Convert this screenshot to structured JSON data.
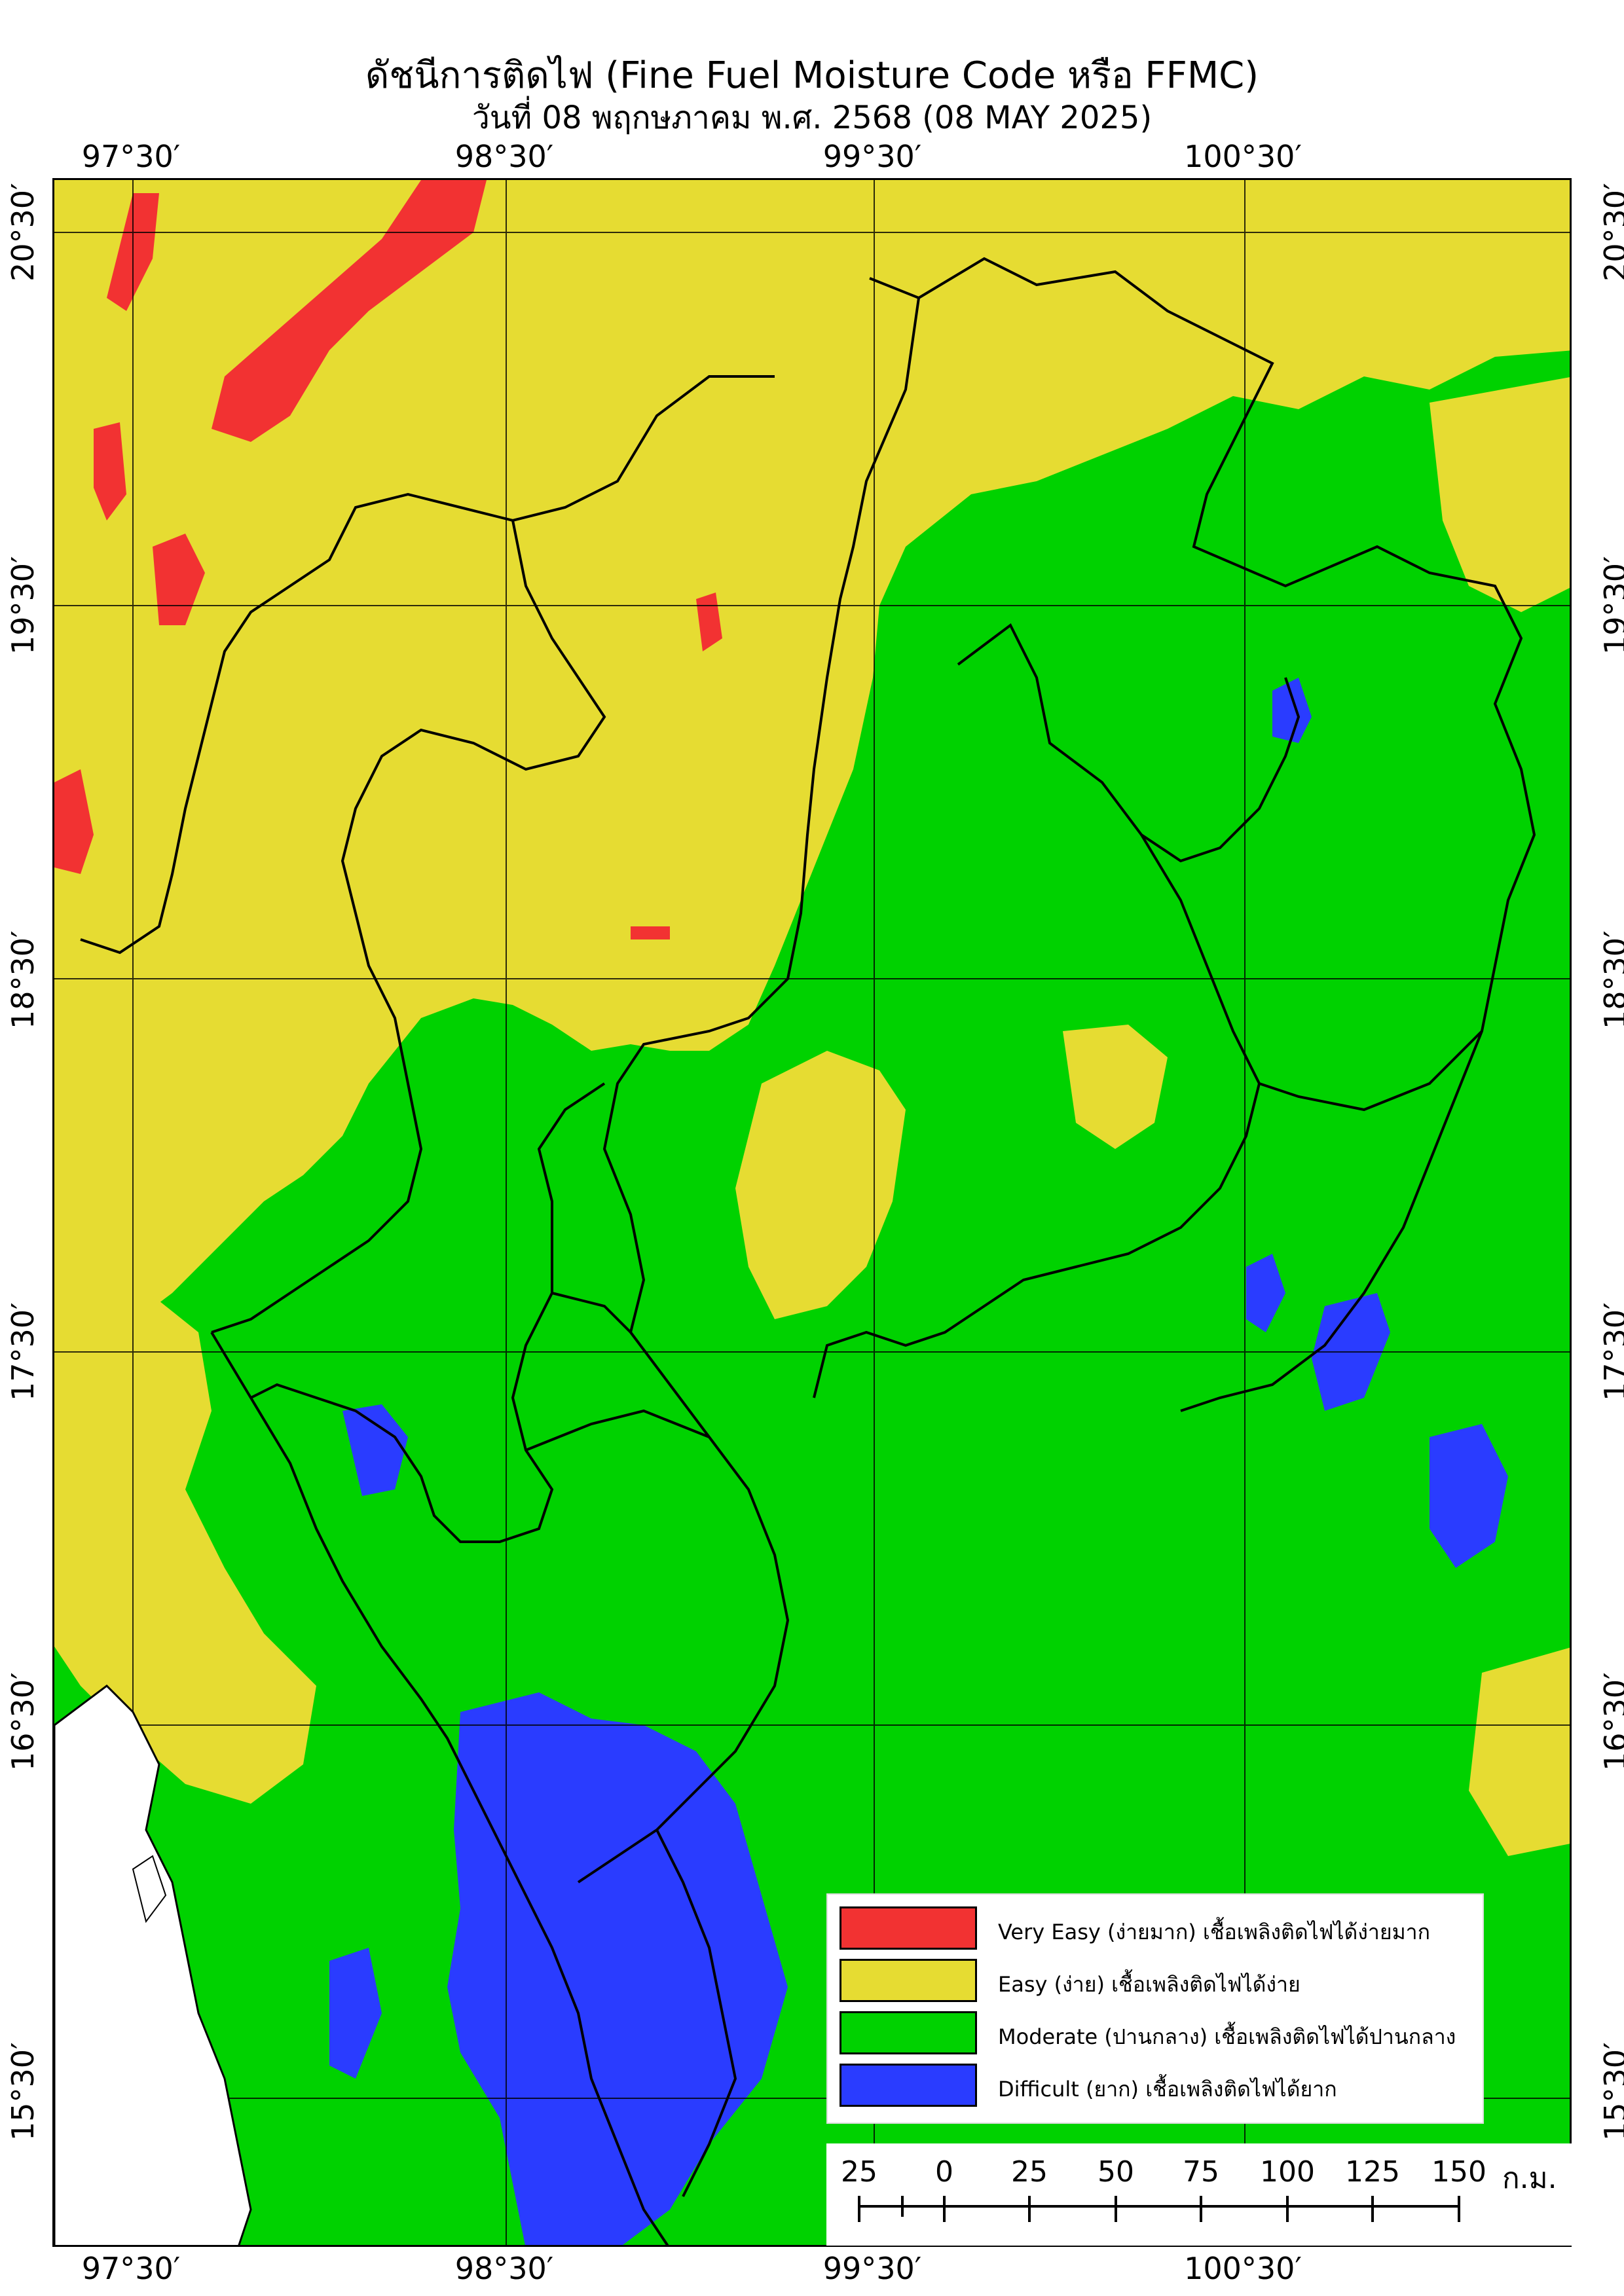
{
  "title": "ดัชนีการติดไฟ (Fine Fuel Moisture Code หรือ FFMC)",
  "subtitle": "วันที่ 08 พฤกษภาคม พ.ศ. 2568 (08 MAY 2025)",
  "longitude_ticks": [
    "97°30′",
    "98°30′",
    "99°30′",
    "100°30′"
  ],
  "latitude_ticks": [
    "20°30′",
    "19°30′",
    "18°30′",
    "17°30′",
    "16°30′",
    "15°30′"
  ],
  "legend": [
    {
      "label": "Very Easy (ง่ายมาก) เชื้อเพลิงติดไฟได้ง่ายมาก",
      "color": "#f23232"
    },
    {
      "label": "Easy (ง่าย) เชื้อเพลิงติดไฟได้ง่าย",
      "color": "#e6dc32"
    },
    {
      "label": "Moderate (ปานกลาง) เชื้อเพลิงติดไฟได้ปานกลาง",
      "color": "#00d200"
    },
    {
      "label": "Difficult (ยาก) เชื้อเพลิงติดไฟได้ยาก",
      "color": "#2a3cff"
    }
  ],
  "scale_bar": {
    "labels": [
      "25",
      "0",
      "25",
      "50",
      "75",
      "100",
      "125",
      "150"
    ],
    "unit": "ก.ม."
  }
}
